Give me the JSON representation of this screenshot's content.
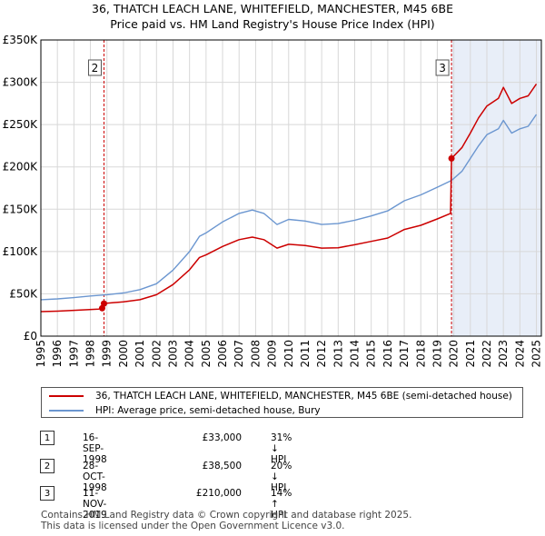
{
  "title_line1": "36, THATCH LEACH LANE, WHITEFIELD, MANCHESTER, M45 6BE",
  "title_line2": "Price paid vs. HM Land Registry's House Price Index (HPI)",
  "legend": {
    "property_label": "36, THATCH LEACH LANE, WHITEFIELD, MANCHESTER, M45 6BE (semi-detached house)",
    "hpi_label": "HPI: Average price, semi-detached house, Bury"
  },
  "sales": [
    {
      "num": "1",
      "date": "16-SEP-1998",
      "price": "£33,000",
      "hpi_change": "31% ↓ HPI"
    },
    {
      "num": "2",
      "date": "28-OCT-1998",
      "price": "£38,500",
      "hpi_change": "20% ↓ HPI"
    },
    {
      "num": "3",
      "date": "11-NOV-2019",
      "price": "£210,000",
      "hpi_change": "14% ↑ HPI"
    }
  ],
  "footer_line1": "Contains HM Land Registry data © Crown copyright and database right 2025.",
  "footer_line2": "This data is licensed under the Open Government Licence v3.0.",
  "colors": {
    "property": "#cc0000",
    "hpi": "#6b96d0",
    "shade": "#e8eef8",
    "marker_line": "#cc0000"
  },
  "chart_data": {
    "type": "line",
    "title": "36, THATCH LEACH LANE, WHITEFIELD, MANCHESTER, M45 6BE — Price paid vs. HM Land Registry's House Price Index (HPI)",
    "xlim": [
      1995,
      2025.3
    ],
    "ylim": [
      0,
      350000
    ],
    "y_ticks": [
      0,
      50000,
      100000,
      150000,
      200000,
      250000,
      300000,
      350000
    ],
    "y_tick_labels": [
      "£0",
      "£50K",
      "£100K",
      "£150K",
      "£200K",
      "£250K",
      "£300K",
      "£350K"
    ],
    "x_ticks": [
      "1995",
      "1996",
      "1997",
      "1998",
      "1999",
      "2000",
      "2001",
      "2002",
      "2003",
      "2004",
      "2005",
      "2006",
      "2007",
      "2008",
      "2009",
      "2010",
      "2011",
      "2012",
      "2013",
      "2014",
      "2015",
      "2016",
      "2017",
      "2018",
      "2019",
      "2020",
      "2021",
      "2022",
      "2023",
      "2024",
      "2025"
    ],
    "grid": true,
    "shaded_region": [
      2019.86,
      2025.3
    ],
    "markers": [
      {
        "label": "2",
        "x": 1998.82,
        "y": 38500
      },
      {
        "label": "3",
        "x": 2019.86,
        "y": 210000
      }
    ],
    "series": [
      {
        "name": "HPI: Average price, semi-detached house, Bury",
        "x": [
          1995,
          1996,
          1997,
          1998,
          1999,
          2000,
          2001,
          2002,
          2003,
          2004,
          2004.6,
          2005,
          2006,
          2007,
          2007.8,
          2008.5,
          2009.3,
          2010,
          2011,
          2012,
          2013,
          2014,
          2015,
          2016,
          2017,
          2018,
          2019,
          2019.86,
          2020.5,
          2021,
          2021.5,
          2022,
          2022.7,
          2023,
          2023.5,
          2024,
          2024.5,
          2025
        ],
        "y": [
          43000,
          44000,
          45500,
          47500,
          49000,
          51000,
          55000,
          62000,
          78000,
          100000,
          118000,
          122000,
          135000,
          145000,
          149000,
          145000,
          132000,
          138000,
          136000,
          132000,
          133000,
          137000,
          142000,
          148000,
          160000,
          167000,
          176000,
          184000,
          195000,
          210000,
          225000,
          238000,
          245000,
          255000,
          240000,
          245000,
          248000,
          262000
        ]
      },
      {
        "name": "36, THATCH LEACH LANE, WHITEFIELD, MANCHESTER, M45 6BE (semi-detached house)",
        "x": [
          1995,
          1996,
          1997,
          1998.5,
          1998.71,
          1998.82,
          1999,
          2000,
          2001,
          2002,
          2003,
          2004,
          2004.6,
          2005,
          2006,
          2007,
          2007.8,
          2008.5,
          2009.3,
          2010,
          2011,
          2012,
          2013,
          2014,
          2015,
          2016,
          2017,
          2018,
          2019,
          2019.8,
          2019.86,
          2020.5,
          2021,
          2021.5,
          2022,
          2022.7,
          2023,
          2023.5,
          2024,
          2024.5,
          2025
        ],
        "y": [
          29000,
          29500,
          30500,
          32000,
          33000,
          38500,
          39000,
          40500,
          43000,
          49000,
          61000,
          78500,
          93000,
          96000,
          106000,
          114000,
          117000,
          114000,
          104000,
          108500,
          107000,
          104000,
          104500,
          108000,
          112000,
          116000,
          126000,
          131000,
          138500,
          145000,
          210000,
          223000,
          240000,
          258000,
          272000,
          281000,
          294000,
          275000,
          281000,
          284000,
          298000
        ]
      }
    ]
  }
}
